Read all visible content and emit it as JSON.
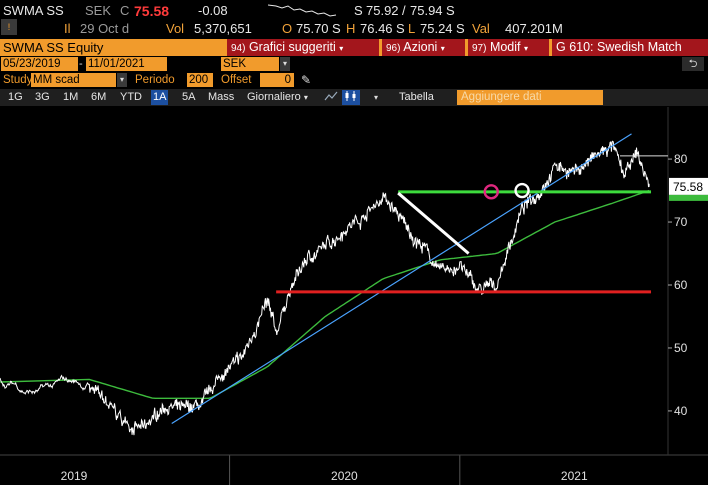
{
  "quote": {
    "ticker": "SWMA SS",
    "currency": "SEK",
    "c_label": "C",
    "last_price": "75.58",
    "change": "-0.08",
    "sparkline_label": "",
    "bid_ask_prefix": "S",
    "bid": "75.92",
    "ask": "75.94",
    "ask_suffix": "S",
    "indicator_il": "Il",
    "date": "29 Oct d",
    "vol_label": "Vol",
    "volume": "5,370,651",
    "open_label": "O",
    "open": "75.70",
    "open_suffix": "S",
    "high_label": "H",
    "high": "76.46",
    "high_suffix": "S",
    "low_label": "L",
    "low": "75.24",
    "low_suffix": "S",
    "val_label": "Val",
    "value": "407.201M"
  },
  "titlebar": {
    "security": "SWMA SS Equity",
    "btn1_num": "94)",
    "btn1_label": "Grafici suggeriti",
    "btn2_num": "96)",
    "btn2_label": "Azioni",
    "btn3_num": "97)",
    "btn3_label": "Modif",
    "btn4_label": "G 610: Swedish Match"
  },
  "dates": {
    "start": "05/23/2019",
    "end": "11/01/2021",
    "currency": "SEK",
    "back_icon": "undo-icon"
  },
  "study": {
    "study_label": "Study",
    "study_value": "MM scad",
    "period_label": "Periodo",
    "period_value": "200",
    "offset_label": "Offset",
    "offset_value": "0",
    "pen_icon": "pencil-icon"
  },
  "toolbar": {
    "ranges": [
      "1G",
      "3G",
      "1M",
      "6M",
      "YTD",
      "1A",
      "5A",
      "Mass"
    ],
    "selected_range": "1A",
    "frequency": "Giornaliero",
    "table_label": "Tabella",
    "add_data_label": "Aggiungere dati"
  },
  "colors": {
    "price": "#ffffff",
    "ma": "#3dbb3d",
    "trend_up": "#4aa3ff",
    "support_green": "#3ddc3d",
    "support_red": "#e02020",
    "downtrend": "#ffffff",
    "circle_magenta": "#e0287f",
    "circle_white": "#ffffff",
    "accent": "#f19b2c",
    "button_red": "#a3161c"
  },
  "chart_data": {
    "type": "line",
    "title": "",
    "xlabel": "",
    "ylabel": "",
    "x_ticks": [
      "2019",
      "2020",
      "2021"
    ],
    "y_ticks": [
      40,
      50,
      60,
      70,
      80
    ],
    "ylim": [
      33,
      87
    ],
    "last_price_label": "75.58",
    "series": [
      {
        "name": "",
        "x": [
          "2019-05-23",
          "2019-06-20",
          "2019-07-20",
          "2019-08-20",
          "2019-09-20",
          "2019-10-20",
          "2019-11-20",
          "2019-12-20",
          "2020-01-20",
          "2020-02-10",
          "2020-03-01",
          "2020-03-15",
          "2020-04-01",
          "2020-05-01",
          "2020-06-01",
          "2020-07-01",
          "2020-08-01",
          "2020-09-01",
          "2020-09-25",
          "2020-10-15",
          "2020-11-05",
          "2020-12-01",
          "2021-01-01",
          "2021-02-01",
          "2021-03-01",
          "2021-03-20",
          "2021-04-10",
          "2021-05-01",
          "2021-06-01",
          "2021-07-01",
          "2021-08-01",
          "2021-09-01",
          "2021-09-20",
          "2021-10-10",
          "2021-10-29"
        ],
        "y": [
          44,
          41,
          38,
          37,
          41,
          40,
          41,
          46,
          48,
          53,
          57,
          52,
          58,
          64,
          66,
          69,
          71,
          74,
          71,
          68,
          66,
          62,
          63,
          59,
          60,
          66,
          72,
          74,
          79,
          78,
          80,
          82,
          77,
          81,
          75.58
        ]
      },
      {
        "name": "",
        "x": [
          "2019-05-23",
          "2019-09-01",
          "2019-12-01",
          "2020-03-01",
          "2020-06-01",
          "2020-09-01",
          "2020-12-01",
          "2021-03-01",
          "2021-06-01",
          "2021-09-01",
          "2021-10-29"
        ],
        "y": [
          45,
          42,
          42,
          47,
          55,
          61,
          64,
          65,
          70,
          73,
          75
        ]
      }
    ],
    "drawings": [
      {
        "type": "trendline",
        "from": [
          "2019-10-01",
          38
        ],
        "to": [
          "2021-10-01",
          84
        ]
      },
      {
        "type": "hline",
        "y": 74.8,
        "from_x": "2020-09-25",
        "to_x": "2021-11-01"
      },
      {
        "type": "hline",
        "y": 58.9,
        "from_x": "2020-03-15",
        "to_x": "2021-11-01"
      },
      {
        "type": "trendline",
        "from": [
          "2020-09-25",
          74.6
        ],
        "to": [
          "2021-01-15",
          65
        ]
      },
      {
        "type": "circle",
        "at": [
          "2021-02-20",
          74.8
        ]
      },
      {
        "type": "circle",
        "at": [
          "2021-04-10",
          75
        ]
      }
    ]
  }
}
